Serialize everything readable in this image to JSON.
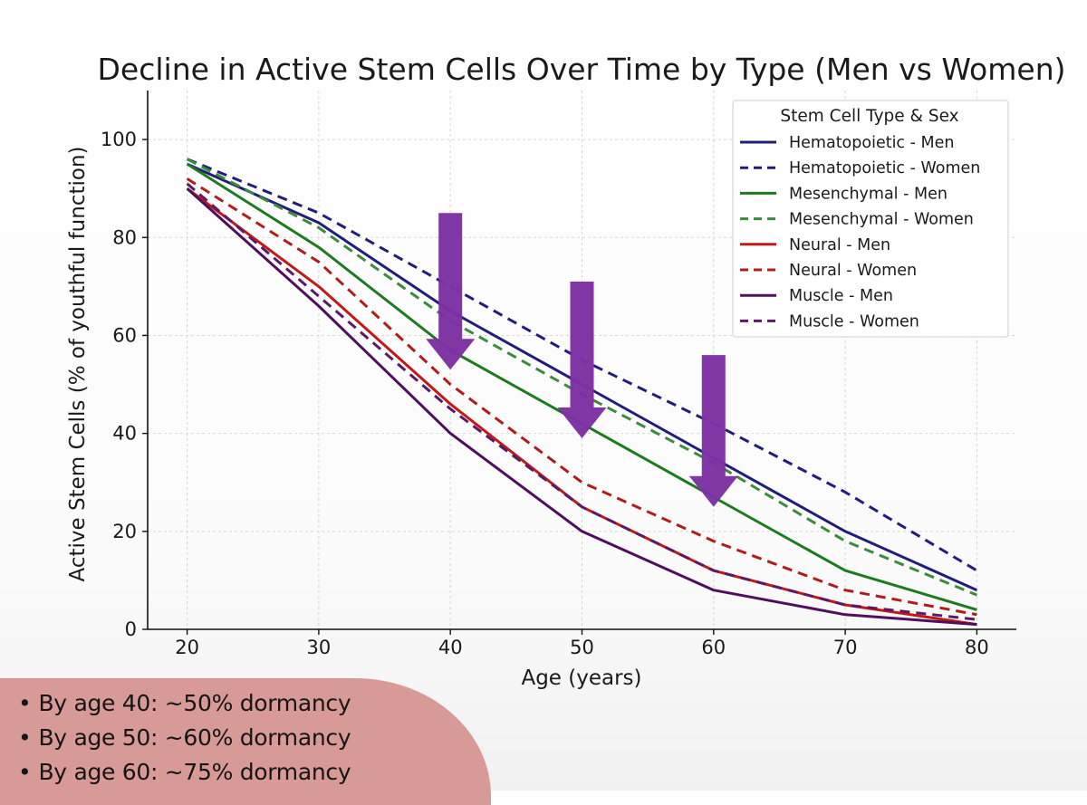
{
  "chart_data": {
    "type": "line",
    "title": "Decline in Active Stem Cells Over Time by Type (Men vs Women)",
    "xlabel": "Age (years)",
    "ylabel": "Active Stem Cells (% of youthful function)",
    "x": [
      20,
      30,
      40,
      50,
      60,
      70,
      80
    ],
    "xlim": [
      17,
      83
    ],
    "ylim": [
      0,
      110
    ],
    "xticks": [
      20,
      30,
      40,
      50,
      60,
      70,
      80
    ],
    "yticks": [
      0,
      20,
      40,
      60,
      80,
      100
    ],
    "grid": true,
    "legend": {
      "title": "Stem Cell Type & Sex",
      "placement": "top-right"
    },
    "series": [
      {
        "name": "Hematopoietic - Men",
        "color": "#1f1f7a",
        "dash": false,
        "values": [
          95,
          83,
          65,
          50,
          35,
          20,
          8
        ]
      },
      {
        "name": "Hematopoietic - Women",
        "color": "#1f1f7a",
        "dash": true,
        "values": [
          96,
          85,
          70,
          55,
          42,
          28,
          12
        ]
      },
      {
        "name": "Mesenchymal - Men",
        "color": "#1e7a1e",
        "dash": false,
        "values": [
          95,
          78,
          57,
          42,
          27,
          12,
          4
        ]
      },
      {
        "name": "Mesenchymal - Women",
        "color": "#3c8a3c",
        "dash": true,
        "values": [
          96,
          82,
          63,
          48,
          34,
          18,
          7
        ]
      },
      {
        "name": "Neural - Men",
        "color": "#c21818",
        "dash": false,
        "values": [
          90,
          70,
          46,
          25,
          12,
          5,
          1
        ]
      },
      {
        "name": "Neural - Women",
        "color": "#b01c1c",
        "dash": true,
        "values": [
          92,
          75,
          50,
          30,
          18,
          8,
          3
        ]
      },
      {
        "name": "Muscle - Men",
        "color": "#4f0f5e",
        "dash": false,
        "values": [
          90,
          66,
          40,
          20,
          8,
          3,
          1
        ]
      },
      {
        "name": "Muscle - Women",
        "color": "#5a1a66",
        "dash": true,
        "values": [
          91,
          68,
          45,
          25,
          12,
          5,
          2
        ]
      }
    ],
    "annotations": [
      {
        "type": "arrow",
        "x": 40,
        "y_from": 85,
        "y_to": 53,
        "color": "#7d2fa3"
      },
      {
        "type": "arrow",
        "x": 50,
        "y_from": 71,
        "y_to": 39,
        "color": "#7d2fa3"
      },
      {
        "type": "arrow",
        "x": 60,
        "y_from": 56,
        "y_to": 25,
        "color": "#7d2fa3"
      }
    ]
  },
  "caption": {
    "bullets": [
      "By age 40: ~50% dormancy",
      "By age 50: ~60% dormancy",
      "By age 60: ~75% dormancy"
    ]
  }
}
